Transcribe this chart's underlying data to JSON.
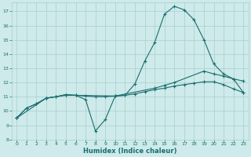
{
  "xlabel": "Humidex (Indice chaleur)",
  "background_color": "#ceeaea",
  "grid_color": "#aacece",
  "line_color": "#1a6e6e",
  "xlim": [
    -0.5,
    23.5
  ],
  "ylim": [
    8,
    17.6
  ],
  "yticks": [
    8,
    9,
    10,
    11,
    12,
    13,
    14,
    15,
    16,
    17
  ],
  "xticks": [
    0,
    1,
    2,
    3,
    4,
    5,
    6,
    7,
    8,
    9,
    10,
    11,
    12,
    13,
    14,
    15,
    16,
    17,
    18,
    19,
    20,
    21,
    22,
    23
  ],
  "line1_x": [
    0,
    1,
    2,
    3,
    4,
    5,
    6,
    7,
    8,
    9,
    10,
    11,
    12,
    13,
    14,
    15,
    16,
    17,
    18,
    19,
    20,
    21,
    22,
    23
  ],
  "line1_y": [
    9.5,
    10.2,
    10.5,
    10.9,
    11.0,
    11.15,
    11.1,
    10.8,
    8.6,
    9.4,
    11.05,
    11.1,
    11.9,
    13.5,
    14.8,
    16.8,
    17.35,
    17.1,
    16.4,
    15.0,
    13.3,
    12.6,
    12.25,
    12.1
  ],
  "line2_x": [
    0,
    1,
    2,
    3,
    4,
    5,
    6,
    7,
    8,
    9,
    10,
    11,
    12,
    13,
    14,
    15,
    16,
    17,
    18,
    19,
    20,
    21,
    22,
    23
  ],
  "line2_y": [
    9.5,
    10.2,
    10.5,
    10.9,
    11.0,
    11.15,
    11.1,
    11.05,
    11.0,
    11.0,
    11.05,
    11.1,
    11.2,
    11.35,
    11.5,
    11.6,
    11.75,
    11.85,
    11.95,
    12.05,
    12.05,
    11.85,
    11.55,
    11.3
  ],
  "line3_x": [
    0,
    3,
    5,
    6,
    10,
    14,
    15,
    16,
    19,
    20,
    21,
    22,
    23
  ],
  "line3_y": [
    9.5,
    10.9,
    11.1,
    11.1,
    11.05,
    11.6,
    11.8,
    12.0,
    12.8,
    12.6,
    12.45,
    12.25,
    11.3
  ]
}
